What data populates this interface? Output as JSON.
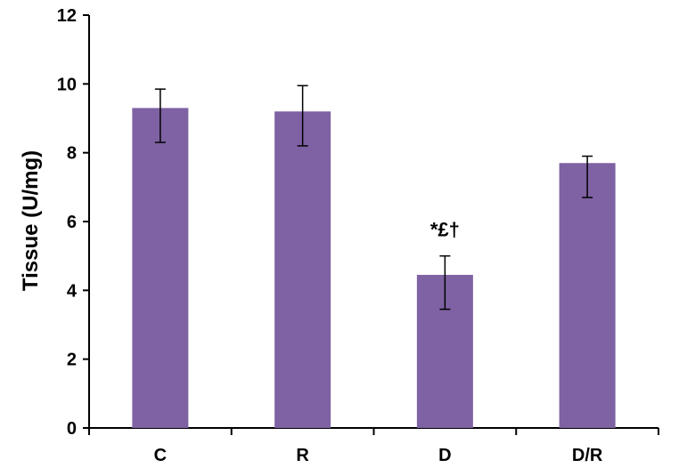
{
  "chart_data": {
    "type": "bar",
    "title": "",
    "xlabel": "",
    "ylabel": "Tissue (U/mg)",
    "categories": [
      "C",
      "R",
      "D",
      "D/R"
    ],
    "values": [
      9.3,
      9.2,
      4.45,
      7.7
    ],
    "error_low": [
      8.3,
      8.2,
      3.45,
      6.7
    ],
    "error_high": [
      9.85,
      9.95,
      5.0,
      7.9
    ],
    "annotations": [
      {
        "category": "D",
        "text": "*£†"
      }
    ],
    "ylim": [
      0,
      12
    ],
    "yticks": [
      0,
      2,
      4,
      6,
      8,
      10,
      12
    ],
    "grid": false,
    "legend": "none",
    "bar_color": "#7e62a3"
  }
}
